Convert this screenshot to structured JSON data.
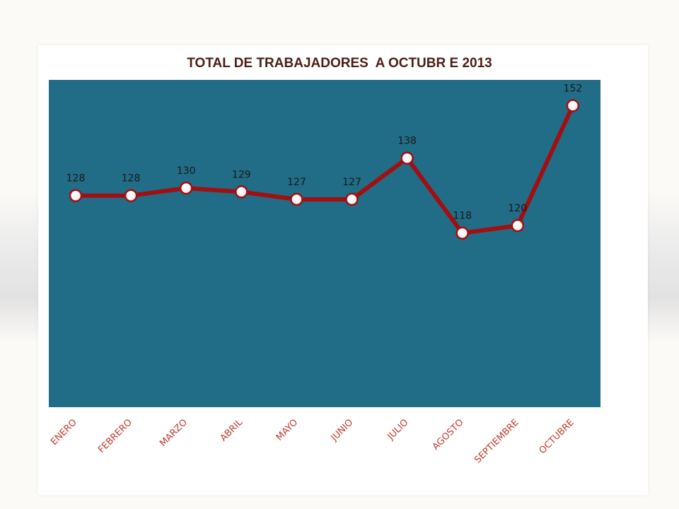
{
  "chart_data": {
    "type": "line",
    "title": "TOTAL DE TRABAJADORES  A OCTUBR E 2013",
    "xlabel": "",
    "ylabel": "",
    "categories": [
      "ENERO",
      "FEBRERO",
      "MARZO",
      "ABRIL",
      "MAYO",
      "JUNIO",
      "JULIO",
      "AGOSTO",
      "SEPTIEMBRE",
      "OCTUBRE"
    ],
    "series": [
      {
        "values": [
          128,
          128,
          130,
          129,
          127,
          127,
          138,
          118,
          120,
          152
        ]
      }
    ],
    "ylim": [
      0,
      200
    ],
    "grid": false,
    "legend": "none",
    "data_labels": true,
    "colors": {
      "plot_background": "#216c87",
      "line": "#a30f10",
      "marker_fill": "#ffffff",
      "title": "#4a1f14",
      "tick_label": "#c0392b"
    }
  }
}
